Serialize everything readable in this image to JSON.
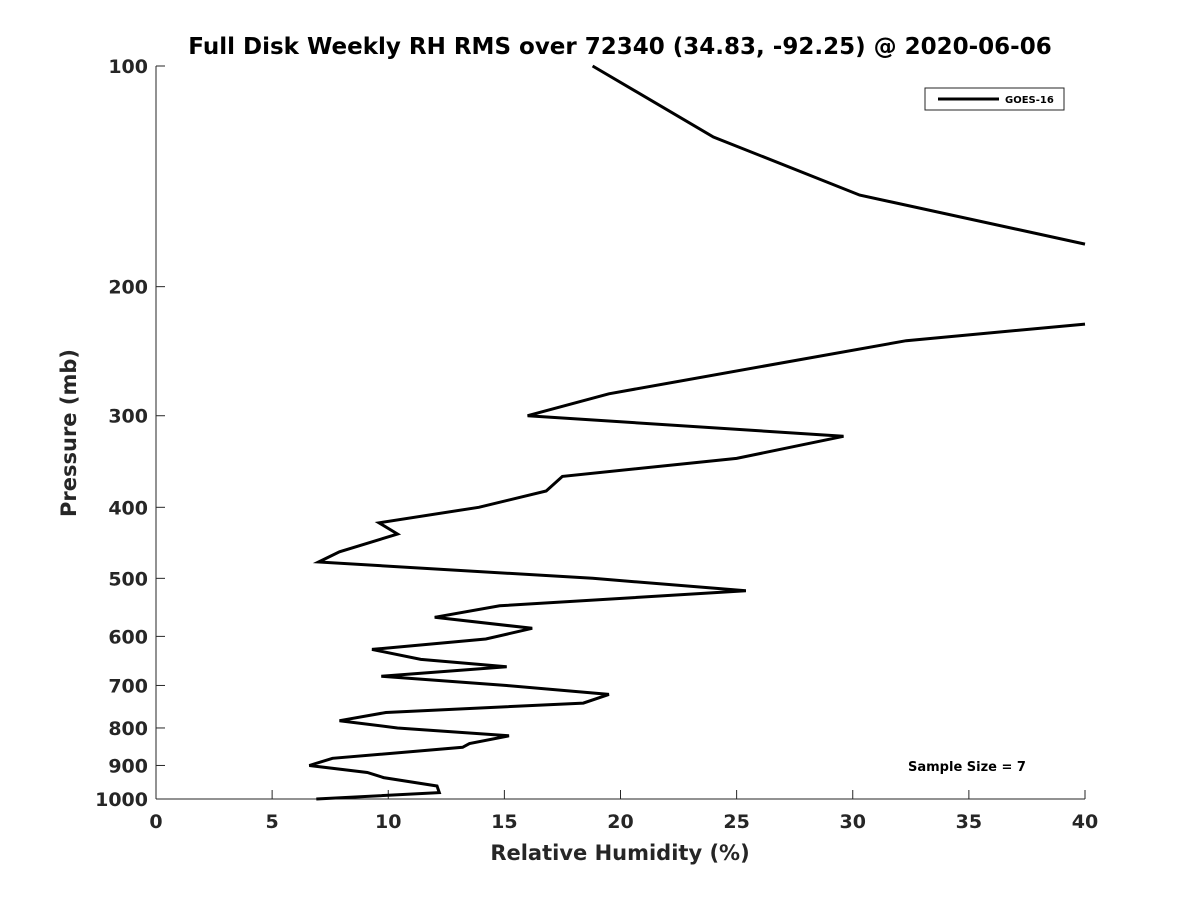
{
  "chart_data": {
    "type": "line",
    "title": "Full Disk Weekly RH RMS over 72340 (34.83, -92.25) @ 2020-06-06",
    "xlabel": "Relative Humidity (%)",
    "ylabel": "Pressure (mb)",
    "xlim": [
      0,
      40
    ],
    "ylim": [
      1000,
      100
    ],
    "yscale": "log",
    "grid": false,
    "legend_placement": "top-right",
    "x_ticks": [
      0,
      5,
      10,
      15,
      20,
      25,
      30,
      35,
      40
    ],
    "x_tick_labels": [
      "0",
      "5",
      "10",
      "15",
      "20",
      "25",
      "30",
      "35",
      "40"
    ],
    "y_ticks": [
      100,
      200,
      300,
      400,
      500,
      600,
      700,
      800,
      900,
      1000
    ],
    "y_tick_labels": [
      "100",
      "200",
      "300",
      "400",
      "500",
      "600",
      "700",
      "800",
      "900",
      "1000"
    ],
    "annotation": "Sample Size = 7",
    "series": [
      {
        "name": "GOES-16",
        "color": "#000000",
        "points": [
          [
            18.8,
            100
          ],
          [
            24.0,
            125
          ],
          [
            30.3,
            150
          ],
          [
            40.0,
            175
          ],
          [
            null,
            205
          ],
          [
            40.0,
            225
          ],
          [
            32.3,
            237
          ],
          [
            19.5,
            280
          ],
          [
            16.0,
            300
          ],
          [
            29.6,
            320
          ],
          [
            25.0,
            343
          ],
          [
            17.5,
            363
          ],
          [
            16.8,
            380
          ],
          [
            13.9,
            400
          ],
          [
            9.6,
            420
          ],
          [
            10.4,
            435
          ],
          [
            7.9,
            460
          ],
          [
            7.0,
            475
          ],
          [
            18.8,
            500
          ],
          [
            25.4,
            520
          ],
          [
            14.8,
            545
          ],
          [
            12.0,
            565
          ],
          [
            16.2,
            585
          ],
          [
            14.2,
            605
          ],
          [
            9.3,
            625
          ],
          [
            11.4,
            645
          ],
          [
            15.1,
            660
          ],
          [
            9.7,
            680
          ],
          [
            15.1,
            700
          ],
          [
            19.5,
            720
          ],
          [
            18.4,
            740
          ],
          [
            9.9,
            762
          ],
          [
            7.9,
            782
          ],
          [
            10.4,
            800
          ],
          [
            15.2,
            820
          ],
          [
            13.5,
            840
          ],
          [
            13.2,
            850
          ],
          [
            7.6,
            880
          ],
          [
            6.6,
            900
          ],
          [
            9.1,
            920
          ],
          [
            9.8,
            935
          ],
          [
            12.1,
            960
          ],
          [
            12.2,
            980
          ],
          [
            6.9,
            1000
          ]
        ]
      }
    ]
  }
}
